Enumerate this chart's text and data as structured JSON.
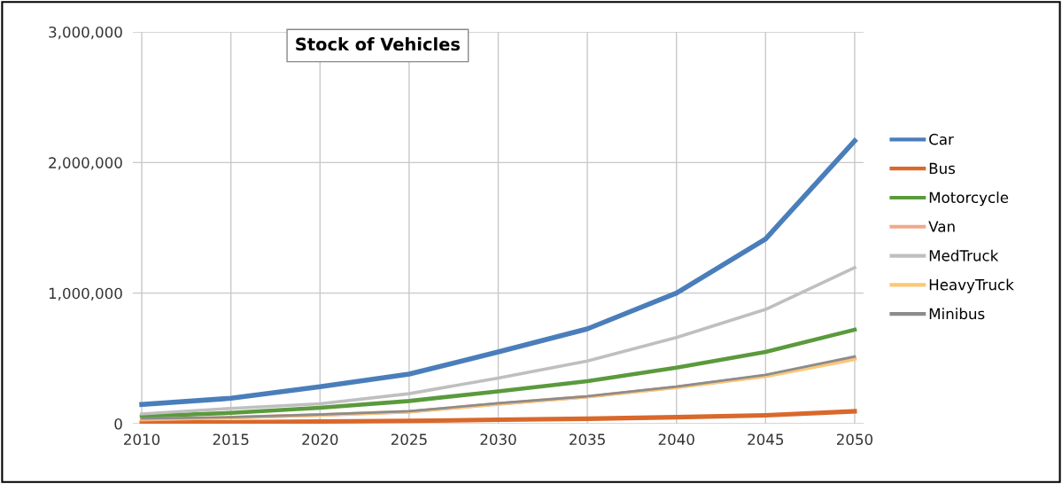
{
  "chart_data": {
    "type": "line",
    "title": "Stock of Vehicles",
    "x": [
      2010,
      2015,
      2020,
      2025,
      2030,
      2035,
      2040,
      2045,
      2050
    ],
    "series": [
      {
        "name": "Car",
        "color": "#4a7ebb",
        "values": [
          148000,
          195000,
          283000,
          380000,
          550000,
          726000,
          1000000,
          1415000,
          2166000
        ]
      },
      {
        "name": "Bus",
        "color": "#d9682b",
        "values": [
          8000,
          12000,
          17000,
          22000,
          30000,
          38000,
          50000,
          65000,
          95000
        ]
      },
      {
        "name": "Motorcycle",
        "color": "#5a9a3c",
        "values": [
          57000,
          83000,
          122000,
          174000,
          248000,
          326000,
          430000,
          550000,
          720000
        ]
      },
      {
        "name": "Van",
        "color": "#f0a98a",
        "values": [
          32000,
          47000,
          67000,
          92000,
          152000,
          207000,
          280000,
          367000,
          500000
        ]
      },
      {
        "name": "MedTruck",
        "color": "#bfbfbf",
        "values": [
          75000,
          117000,
          153000,
          230000,
          350000,
          480000,
          660000,
          875000,
          1195000
        ]
      },
      {
        "name": "HeavyTruck",
        "color": "#fcc777",
        "values": [
          35000,
          45000,
          65000,
          90000,
          150000,
          205000,
          275000,
          360000,
          490000
        ]
      },
      {
        "name": "Minibus",
        "color": "#8c8c8c",
        "values": [
          40000,
          50000,
          70000,
          96000,
          157000,
          210000,
          284000,
          374000,
          515000
        ]
      }
    ],
    "xlim": [
      2009.5,
      2050.5
    ],
    "xticks": [
      2010,
      2015,
      2020,
      2025,
      2030,
      2035,
      2040,
      2045,
      2050
    ],
    "ylim": [
      0,
      3000000
    ],
    "yticks": [
      {
        "value": 0,
        "label": "0"
      },
      {
        "value": 1000000,
        "label": "1,000,000"
      },
      {
        "value": 2000000,
        "label": "2,000,000"
      },
      {
        "value": 3000000,
        "label": "3,000,000"
      }
    ],
    "grid": true,
    "legend": "right",
    "marker": "none",
    "line_style": "solid"
  }
}
